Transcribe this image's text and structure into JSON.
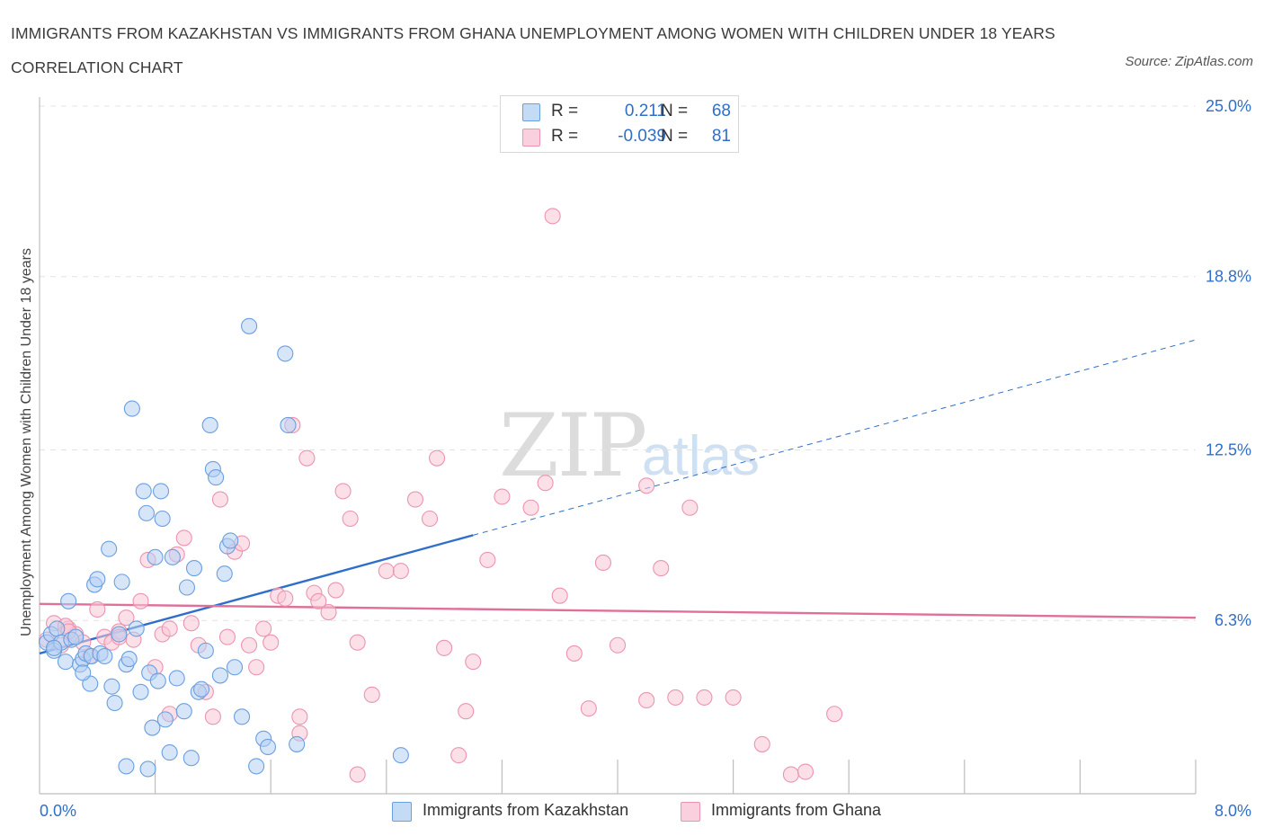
{
  "header": {
    "title": "IMMIGRANTS FROM KAZAKHSTAN VS IMMIGRANTS FROM GHANA UNEMPLOYMENT AMONG WOMEN WITH CHILDREN UNDER 18 YEARS CORRELATION CHART",
    "source": "Source: ZipAtlas.com"
  },
  "watermark": {
    "zip": "ZIP",
    "atlas": "atlas"
  },
  "legend": {
    "rows": [
      {
        "r_label": "R =",
        "r_value": "0.211",
        "n_label": "N =",
        "n_value": "68",
        "color": "#aecbf1"
      },
      {
        "r_label": "R =",
        "r_value": "-0.039",
        "n_label": "N =",
        "n_value": "81",
        "color": "#f7bfd0"
      }
    ]
  },
  "bottom_legend": {
    "kazakhstan": "Immigrants from Kazakhstan",
    "ghana": "Immigrants from Ghana"
  },
  "colors": {
    "kazakhstan_fill": "#b5d0f3",
    "kazakhstan_stroke": "#6a9fe0",
    "kazakhstan_line": "#2f6fc9",
    "ghana_fill": "#f9c6d6",
    "ghana_stroke": "#ec93b0",
    "ghana_line": "#e0709a",
    "tick_label": "#2f6fc9"
  },
  "chart_data": {
    "type": "scatter",
    "title": "IMMIGRANTS FROM KAZAKHSTAN VS IMMIGRANTS FROM GHANA UNEMPLOYMENT AMONG WOMEN WITH CHILDREN UNDER 18 YEARS CORRELATION CHART",
    "xlabel": "",
    "ylabel": "Unemployment Among Women with Children Under 18 years",
    "xlim": [
      0,
      8
    ],
    "ylim": [
      0,
      25
    ],
    "x_tick_labels": [
      "0.0%",
      "8.0%"
    ],
    "y_tick_values": [
      6.3,
      12.5,
      18.8,
      25.0
    ],
    "y_tick_labels": [
      "6.3%",
      "12.5%",
      "18.8%",
      "25.0%"
    ],
    "grid": true,
    "legend_position": "top-center",
    "series": [
      {
        "name": "Immigrants from Kazakhstan",
        "points": [
          [
            0.05,
            5.5
          ],
          [
            0.08,
            5.8
          ],
          [
            0.1,
            5.2
          ],
          [
            0.12,
            6.0
          ],
          [
            0.15,
            5.5
          ],
          [
            0.18,
            4.8
          ],
          [
            0.2,
            7.0
          ],
          [
            0.22,
            5.6
          ],
          [
            0.25,
            5.7
          ],
          [
            0.28,
            4.7
          ],
          [
            0.3,
            4.9
          ],
          [
            0.32,
            5.1
          ],
          [
            0.35,
            4.0
          ],
          [
            0.36,
            5.0
          ],
          [
            0.38,
            7.6
          ],
          [
            0.4,
            7.8
          ],
          [
            0.42,
            5.1
          ],
          [
            0.45,
            5.0
          ],
          [
            0.48,
            8.9
          ],
          [
            0.5,
            3.9
          ],
          [
            0.52,
            3.3
          ],
          [
            0.55,
            5.8
          ],
          [
            0.57,
            7.7
          ],
          [
            0.6,
            4.7
          ],
          [
            0.62,
            4.9
          ],
          [
            0.64,
            14.0
          ],
          [
            0.67,
            6.0
          ],
          [
            0.7,
            3.7
          ],
          [
            0.72,
            11.0
          ],
          [
            0.74,
            10.2
          ],
          [
            0.76,
            4.4
          ],
          [
            0.78,
            2.4
          ],
          [
            0.8,
            8.6
          ],
          [
            0.82,
            4.1
          ],
          [
            0.84,
            11.0
          ],
          [
            0.85,
            10.0
          ],
          [
            0.87,
            2.7
          ],
          [
            0.9,
            1.5
          ],
          [
            0.92,
            8.6
          ],
          [
            0.95,
            4.2
          ],
          [
            1.0,
            3.0
          ],
          [
            1.02,
            7.5
          ],
          [
            1.05,
            1.3
          ],
          [
            1.07,
            8.2
          ],
          [
            1.1,
            3.7
          ],
          [
            1.12,
            3.8
          ],
          [
            1.15,
            5.2
          ],
          [
            1.18,
            13.4
          ],
          [
            1.2,
            11.8
          ],
          [
            1.22,
            11.5
          ],
          [
            1.25,
            4.3
          ],
          [
            1.28,
            8.0
          ],
          [
            1.3,
            9.0
          ],
          [
            1.32,
            9.2
          ],
          [
            1.35,
            4.6
          ],
          [
            1.4,
            2.8
          ],
          [
            1.45,
            17.0
          ],
          [
            1.5,
            1.0
          ],
          [
            1.55,
            2.0
          ],
          [
            1.58,
            1.7
          ],
          [
            1.7,
            16.0
          ],
          [
            1.72,
            13.4
          ],
          [
            1.78,
            1.8
          ],
          [
            0.1,
            5.3
          ],
          [
            0.3,
            4.4
          ],
          [
            0.6,
            1.0
          ],
          [
            0.75,
            0.9
          ],
          [
            2.5,
            1.4
          ]
        ]
      },
      {
        "name": "Immigrants from Ghana",
        "points": [
          [
            0.05,
            5.6
          ],
          [
            0.1,
            6.2
          ],
          [
            0.15,
            5.4
          ],
          [
            0.2,
            6.0
          ],
          [
            0.25,
            5.8
          ],
          [
            0.3,
            5.5
          ],
          [
            0.35,
            5.0
          ],
          [
            0.4,
            6.7
          ],
          [
            0.45,
            5.7
          ],
          [
            0.5,
            5.5
          ],
          [
            0.55,
            5.9
          ],
          [
            0.6,
            6.4
          ],
          [
            0.65,
            5.6
          ],
          [
            0.7,
            7.0
          ],
          [
            0.75,
            8.5
          ],
          [
            0.8,
            4.6
          ],
          [
            0.85,
            5.8
          ],
          [
            0.9,
            6.0
          ],
          [
            0.95,
            8.7
          ],
          [
            1.0,
            9.3
          ],
          [
            1.05,
            6.2
          ],
          [
            1.1,
            5.4
          ],
          [
            1.15,
            3.7
          ],
          [
            1.2,
            2.8
          ],
          [
            1.25,
            10.7
          ],
          [
            1.3,
            5.7
          ],
          [
            1.35,
            8.8
          ],
          [
            1.4,
            9.1
          ],
          [
            1.45,
            5.4
          ],
          [
            1.5,
            4.6
          ],
          [
            1.55,
            6.0
          ],
          [
            1.6,
            5.5
          ],
          [
            1.65,
            7.2
          ],
          [
            1.7,
            7.1
          ],
          [
            1.75,
            13.4
          ],
          [
            1.8,
            2.8
          ],
          [
            1.85,
            12.2
          ],
          [
            1.9,
            7.3
          ],
          [
            2.0,
            6.6
          ],
          [
            2.05,
            7.4
          ],
          [
            2.1,
            11.0
          ],
          [
            2.15,
            10.0
          ],
          [
            2.2,
            5.5
          ],
          [
            2.3,
            3.6
          ],
          [
            2.4,
            8.1
          ],
          [
            2.5,
            8.1
          ],
          [
            2.6,
            10.7
          ],
          [
            2.7,
            10.0
          ],
          [
            2.8,
            5.3
          ],
          [
            2.9,
            1.4
          ],
          [
            3.0,
            4.8
          ],
          [
            3.1,
            8.5
          ],
          [
            3.2,
            10.8
          ],
          [
            3.4,
            10.4
          ],
          [
            3.5,
            11.3
          ],
          [
            3.6,
            7.2
          ],
          [
            3.7,
            5.1
          ],
          [
            3.8,
            3.1
          ],
          [
            3.9,
            8.4
          ],
          [
            4.0,
            5.4
          ],
          [
            4.2,
            3.4
          ],
          [
            4.3,
            8.2
          ],
          [
            4.4,
            3.5
          ],
          [
            4.5,
            10.4
          ],
          [
            4.8,
            3.5
          ],
          [
            5.0,
            1.8
          ],
          [
            5.2,
            0.7
          ],
          [
            5.3,
            0.8
          ],
          [
            5.5,
            2.9
          ],
          [
            0.18,
            6.1
          ],
          [
            1.93,
            7.0
          ],
          [
            2.2,
            0.7
          ],
          [
            0.55,
            5.7
          ],
          [
            0.2,
            5.9
          ],
          [
            1.8,
            2.2
          ],
          [
            3.55,
            21.0
          ],
          [
            4.2,
            11.2
          ],
          [
            2.95,
            3.0
          ],
          [
            2.75,
            12.2
          ],
          [
            4.6,
            3.5
          ],
          [
            0.9,
            2.9
          ]
        ]
      }
    ],
    "trendlines": [
      {
        "series": "Immigrants from Kazakhstan",
        "x": [
          0.0,
          3.0
        ],
        "y": [
          5.1,
          9.4
        ],
        "style": "solid"
      },
      {
        "series": "Immigrants from Kazakhstan",
        "x": [
          3.0,
          8.0
        ],
        "y": [
          9.4,
          16.5
        ],
        "style": "dashed"
      },
      {
        "series": "Immigrants from Ghana",
        "x": [
          0.0,
          8.0
        ],
        "y": [
          6.9,
          6.4
        ],
        "style": "solid"
      }
    ]
  }
}
